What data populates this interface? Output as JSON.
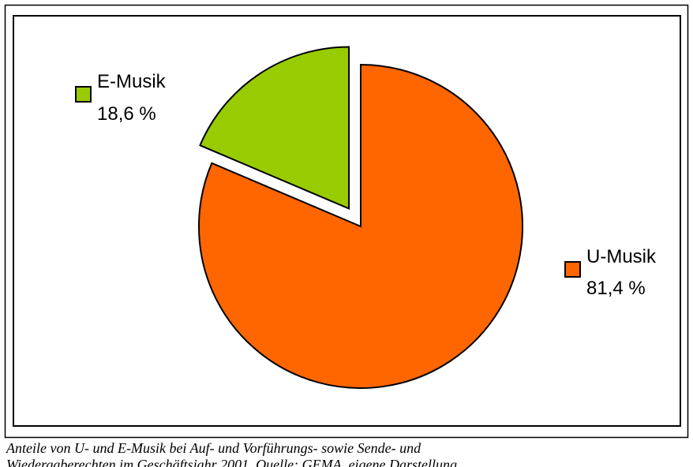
{
  "chart_data": {
    "type": "pie",
    "categories": [
      "U-Musik",
      "E-Musik"
    ],
    "values": [
      81.4,
      18.6
    ],
    "value_labels": [
      "81,4 %",
      "18,6 %"
    ],
    "colors": [
      "#ff6600",
      "#99cc00"
    ],
    "explode": [
      false,
      true
    ],
    "caption": [
      "Anteile von U- und E-Musik bei Auf- und Vorführungs- sowie Sende- und",
      "Wiedergaberechten im Geschäftsjahr 2001. Quelle: GEMA, eigene Darstellung"
    ]
  }
}
